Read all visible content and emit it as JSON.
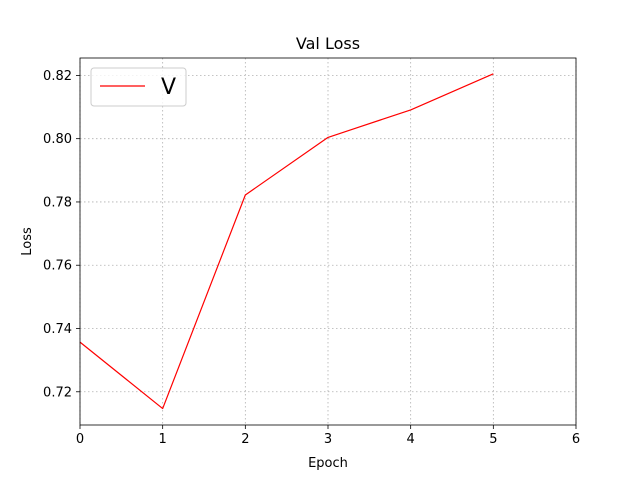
{
  "chart_data": {
    "type": "line",
    "title": "Val Loss",
    "xlabel": "Epoch",
    "ylabel": "Loss",
    "xlim": [
      0,
      6
    ],
    "ylim": [
      0.7095,
      0.8255
    ],
    "xticks": [
      0,
      1,
      2,
      3,
      4,
      5,
      6
    ],
    "yticks": [
      0.72,
      0.74,
      0.76,
      0.78,
      0.8,
      0.82
    ],
    "ytick_labels": [
      "0.72",
      "0.74",
      "0.76",
      "0.78",
      "0.80",
      "0.82"
    ],
    "grid": true,
    "legend_position": "top-left",
    "series": [
      {
        "name": "V",
        "color": "#ff0000",
        "x": [
          0,
          1,
          2,
          3,
          4,
          5
        ],
        "y": [
          0.7357,
          0.7147,
          0.7822,
          0.8004,
          0.8091,
          0.8205
        ]
      }
    ]
  }
}
